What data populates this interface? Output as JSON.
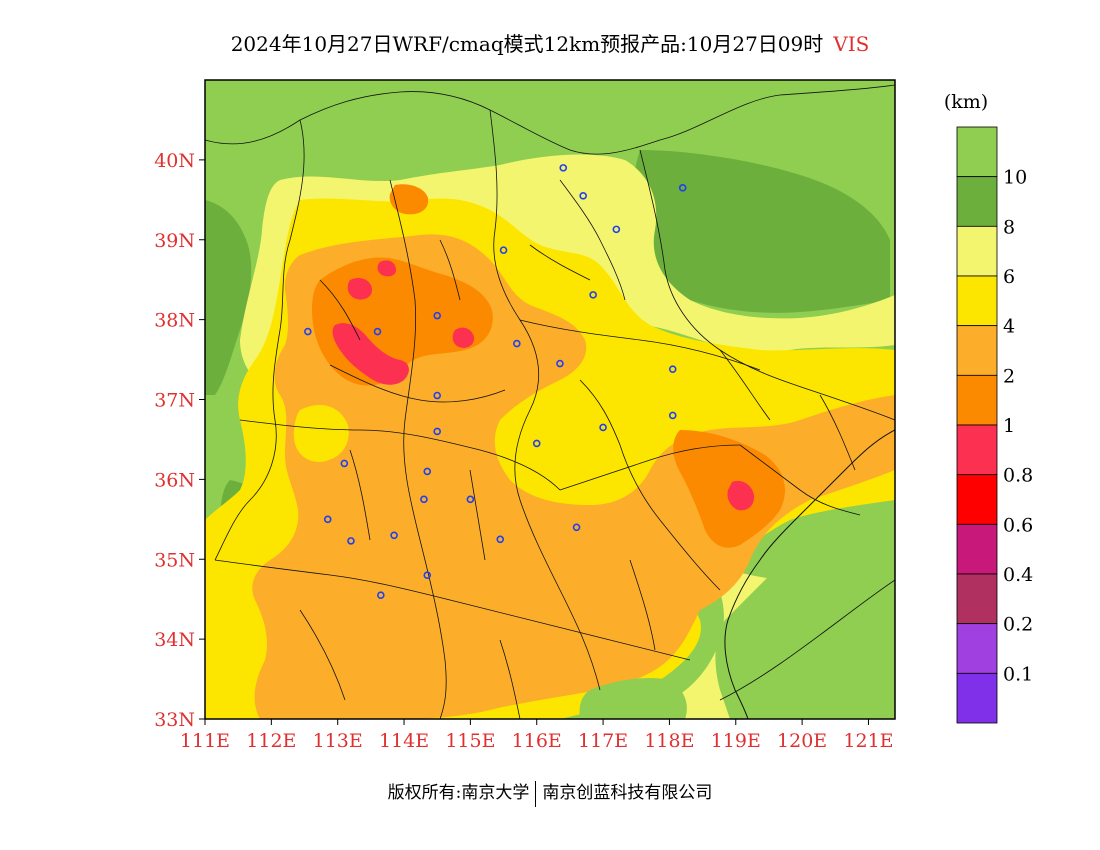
{
  "title": {
    "main": "2024年10月27日WRF/cmaq模式12km预报产品:10月27日09时",
    "variable": "VIS"
  },
  "map": {
    "lat_ticks": [
      "40N",
      "39N",
      "38N",
      "37N",
      "36N",
      "35N",
      "34N",
      "33N"
    ],
    "lon_ticks": [
      "111E",
      "112E",
      "113E",
      "114E",
      "115E",
      "116E",
      "117E",
      "118E",
      "119E",
      "120E",
      "121E"
    ],
    "lat_range": [
      33,
      41
    ],
    "lon_range": [
      111,
      121.4
    ],
    "colors": {
      "gt10": "#8fce50",
      "8_10": "#6caf3c",
      "6_8": "#f4f56e",
      "4_6": "#fce600",
      "2_4": "#fcae2a",
      "1_2": "#fc8a00",
      "0.8_1": "#fc3050",
      "city_marker": "#2040f0",
      "tick_labels": "#e03030"
    },
    "city_markers": [
      [
        116.4,
        39.9
      ],
      [
        116.7,
        39.55
      ],
      [
        117.2,
        39.13
      ],
      [
        118.2,
        39.65
      ],
      [
        115.5,
        38.87
      ],
      [
        116.85,
        38.31
      ],
      [
        112.55,
        37.85
      ],
      [
        113.6,
        37.85
      ],
      [
        114.5,
        38.05
      ],
      [
        115.7,
        37.7
      ],
      [
        116.35,
        37.45
      ],
      [
        118.05,
        37.38
      ],
      [
        114.5,
        37.05
      ],
      [
        118.05,
        36.8
      ],
      [
        117.0,
        36.65
      ],
      [
        114.5,
        36.6
      ],
      [
        116.0,
        36.45
      ],
      [
        113.1,
        36.2
      ],
      [
        114.35,
        36.1
      ],
      [
        114.3,
        35.75
      ],
      [
        115.0,
        35.75
      ],
      [
        112.85,
        35.5
      ],
      [
        113.2,
        35.23
      ],
      [
        113.85,
        35.3
      ],
      [
        115.45,
        35.25
      ],
      [
        116.6,
        35.4
      ],
      [
        114.35,
        34.8
      ],
      [
        113.65,
        34.55
      ]
    ]
  },
  "legend": {
    "unit": "(km)",
    "labels": [
      "10",
      "8",
      "6",
      "4",
      "2",
      "1",
      "0.8",
      "0.6",
      "0.4",
      "0.2",
      "0.1"
    ],
    "colors": [
      "#8fce50",
      "#6caf3c",
      "#f4f56e",
      "#fce600",
      "#fcae2a",
      "#fc8a00",
      "#fc3050",
      "#ff0000",
      "#c8187a",
      "#b03060",
      "#a040e0",
      "#8030e8"
    ]
  },
  "footer": {
    "left": "版权所有:南京大学",
    "right": "南京创蓝科技有限公司"
  }
}
